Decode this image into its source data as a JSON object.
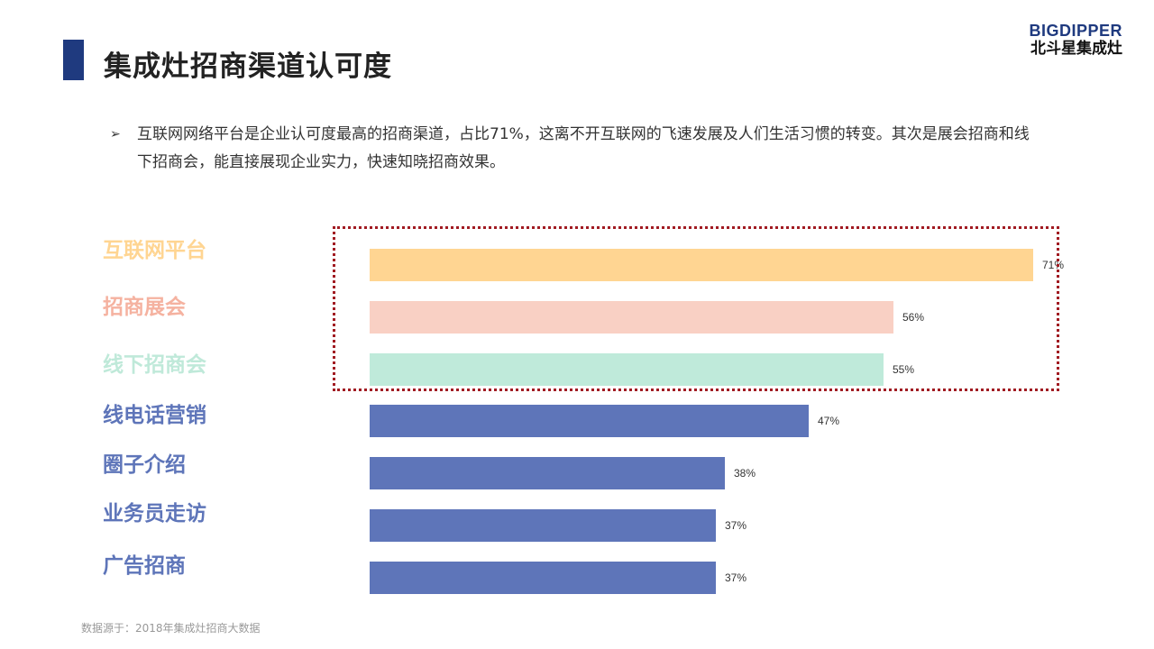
{
  "title": "集成灶招商渠道认可度",
  "logo": {
    "en": "BIGDIPPER",
    "cn": "北斗星集成灶"
  },
  "bullet": {
    "arrow": "➢",
    "text": "互联网网络平台是企业认可度最高的招商渠道，占比71%，这离不开互联网的飞速发展及人们生活习惯的转变。其次是展会招商和线下招商会，能直接展现企业实力，快速知晓招商效果。"
  },
  "chart_data": {
    "type": "bar",
    "orientation": "horizontal",
    "categories": [
      "互联网平台",
      "招商展会",
      "线下招商会",
      "线电话营销",
      "圈子介绍",
      "业务员走访",
      "广告招商"
    ],
    "values": [
      71,
      56,
      55,
      47,
      38,
      37,
      37
    ],
    "value_labels": [
      "71%",
      "56%",
      "55%",
      "47%",
      "38%",
      "37%",
      "37%"
    ],
    "colors": [
      "#ffd592",
      "#f9d0c4",
      "#bfeada",
      "#5e75b9",
      "#5e75b9",
      "#5e75b9",
      "#5e75b9"
    ],
    "label_colors": [
      "#ffd592",
      "#f5b2a0",
      "#bfe9d9",
      "#5e75b9",
      "#5e75b9",
      "#5e75b9",
      "#5e75b9"
    ],
    "highlighted_categories": [
      "互联网平台",
      "招商展会",
      "线下招商会"
    ],
    "highlight_color": "#a11b22"
  },
  "source": "数据源于：2018年集成灶招商大数据"
}
